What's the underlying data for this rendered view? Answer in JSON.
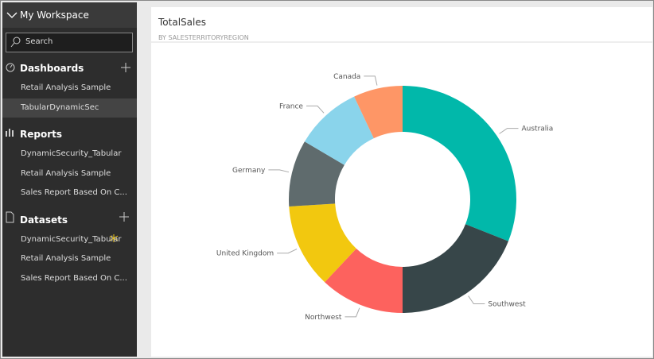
{
  "sidebar": {
    "workspace": "My Workspace",
    "search": "Search",
    "sections": [
      {
        "title": "Dashboards",
        "items": [
          "Retail Analysis Sample",
          "TabularDynamicSec"
        ]
      },
      {
        "title": "Reports",
        "items": [
          "DynamicSecurity_Tabular",
          "Retail Analysis Sample",
          "Sales Report Based On C..."
        ]
      },
      {
        "title": "Datasets",
        "items": [
          "DynamicSecurity_Tabular",
          "Retail Analysis Sample",
          "Sales Report Based On C..."
        ]
      }
    ]
  },
  "chart_data": {
    "type": "donut",
    "title": "TotalSales",
    "subtitle": "BY SALESTERRITORYREGION",
    "categories": [
      "Australia",
      "Southwest",
      "Northwest",
      "United Kingdom",
      "Germany",
      "France",
      "Canada"
    ],
    "values": [
      31,
      19,
      12,
      12,
      9.5,
      9.5,
      7
    ],
    "colors": [
      "#01b8aa",
      "#374649",
      "#fd625e",
      "#f2c80f",
      "#5f6b6d",
      "#8ad4eb",
      "#fe9666"
    ]
  }
}
